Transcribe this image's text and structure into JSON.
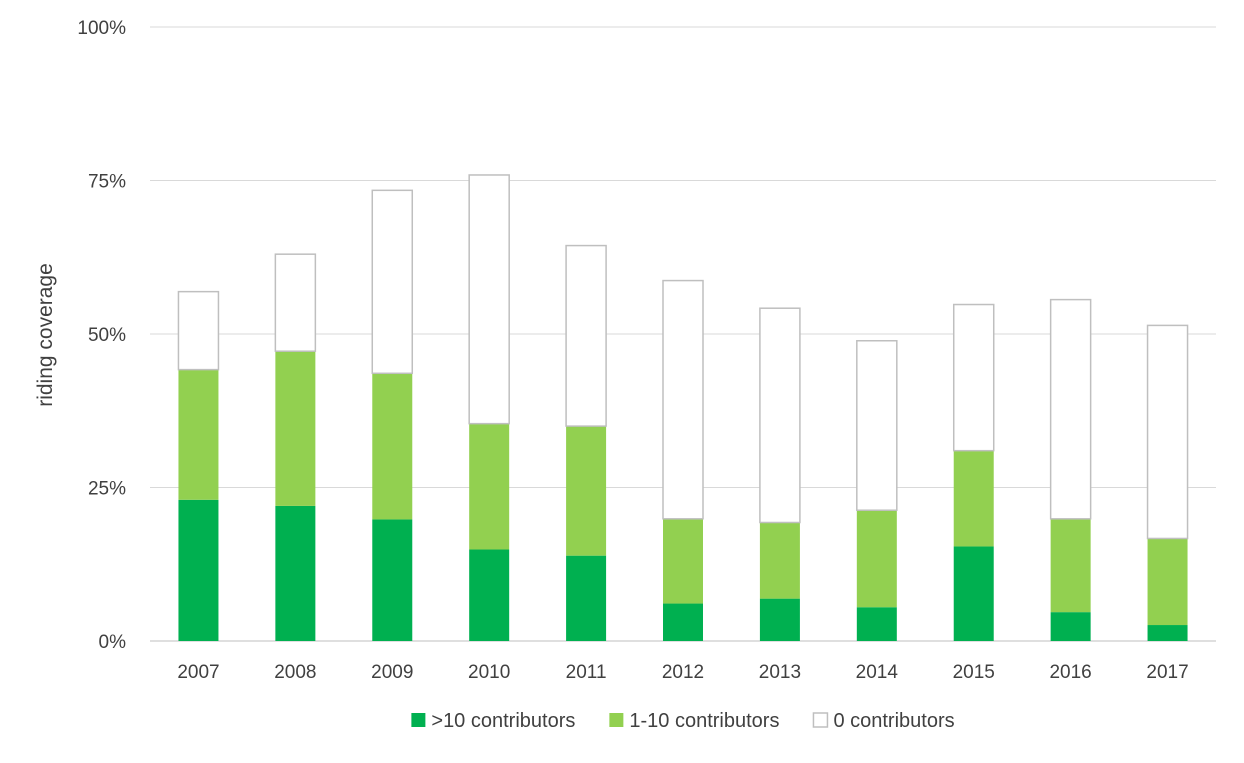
{
  "chart_data": {
    "type": "bar",
    "stacked": true,
    "ylabel": "riding coverage",
    "ylim": [
      0,
      100
    ],
    "yticks": [
      "0%",
      "25%",
      "50%",
      "75%",
      "100%"
    ],
    "grid": true,
    "legend_position": "bottom",
    "categories": [
      "2007",
      "2008",
      "2009",
      "2010",
      "2011",
      "2012",
      "2013",
      "2014",
      "2015",
      "2016",
      "2017"
    ],
    "series": [
      {
        "name": ">10 contributors",
        "color": "#00b050",
        "values": [
          23.0,
          22.0,
          19.8,
          14.9,
          13.9,
          6.1,
          6.9,
          5.5,
          15.4,
          4.7,
          2.6
        ]
      },
      {
        "name": "1-10 contributors",
        "color": "#92d050",
        "values": [
          21.2,
          25.2,
          23.8,
          20.5,
          21.1,
          13.8,
          12.4,
          15.8,
          15.6,
          15.2,
          14.1
        ]
      },
      {
        "name": "0 contributors",
        "color": "#ffffff",
        "border": "#bfbfbf",
        "values": [
          12.7,
          15.8,
          29.8,
          40.5,
          29.4,
          38.8,
          34.9,
          27.6,
          23.8,
          35.7,
          34.7
        ]
      }
    ]
  }
}
